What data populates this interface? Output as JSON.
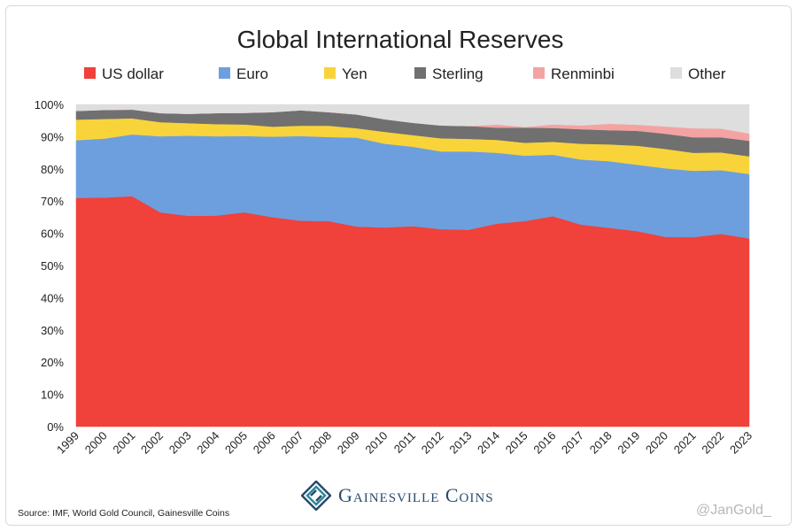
{
  "chart_data": {
    "type": "area",
    "stacked": true,
    "title": "Global International Reserves",
    "xlabel": "",
    "ylabel": "",
    "ylim": [
      0,
      100
    ],
    "yticks": [
      "0%",
      "10%",
      "20%",
      "30%",
      "40%",
      "50%",
      "60%",
      "70%",
      "80%",
      "90%",
      "100%"
    ],
    "categories": [
      "1999",
      "2000",
      "2001",
      "2002",
      "2003",
      "2004",
      "2005",
      "2006",
      "2007",
      "2008",
      "2009",
      "2010",
      "2011",
      "2012",
      "2013",
      "2014",
      "2015",
      "2016",
      "2017",
      "2018",
      "2019",
      "2020",
      "2021",
      "2022",
      "2023"
    ],
    "legend_position": "top",
    "series": [
      {
        "name": "US dollar",
        "color": "#f0413a",
        "values": [
          71.0,
          71.1,
          71.5,
          66.5,
          65.4,
          65.5,
          66.5,
          65.0,
          63.9,
          63.8,
          62.1,
          61.8,
          62.2,
          61.3,
          61.1,
          63.0,
          63.8,
          65.3,
          62.7,
          61.7,
          60.7,
          58.9,
          58.8,
          59.8,
          58.4
        ]
      },
      {
        "name": "Euro",
        "color": "#6d9fde",
        "values": [
          17.9,
          18.3,
          19.2,
          23.6,
          24.9,
          24.6,
          23.7,
          25.0,
          26.3,
          26.1,
          27.6,
          26.0,
          24.7,
          24.1,
          24.3,
          22.0,
          20.3,
          19.1,
          20.2,
          20.7,
          20.6,
          21.3,
          20.6,
          19.8,
          20.0
        ]
      },
      {
        "name": "Yen",
        "color": "#f8d43a",
        "values": [
          6.4,
          6.1,
          5.0,
          4.4,
          3.9,
          3.8,
          3.6,
          3.1,
          3.2,
          3.5,
          2.9,
          3.7,
          3.6,
          4.1,
          3.9,
          4.0,
          4.0,
          4.0,
          4.9,
          5.2,
          5.9,
          6.0,
          5.6,
          5.5,
          5.5
        ]
      },
      {
        "name": "Sterling",
        "color": "#707070",
        "values": [
          2.7,
          2.8,
          2.7,
          2.8,
          2.9,
          3.4,
          3.6,
          4.5,
          4.8,
          4.2,
          4.3,
          3.9,
          3.8,
          4.0,
          4.0,
          3.8,
          4.7,
          4.3,
          4.5,
          4.4,
          4.6,
          4.7,
          4.8,
          4.7,
          4.8
        ]
      },
      {
        "name": "Renminbi",
        "color": "#f4a3a3",
        "values": [
          0,
          0,
          0,
          0,
          0,
          0,
          0,
          0,
          0,
          0,
          0,
          0,
          0,
          0,
          0,
          1.0,
          0.2,
          1.1,
          1.2,
          2.0,
          1.9,
          2.3,
          2.8,
          2.7,
          2.3
        ]
      },
      {
        "name": "Other",
        "color": "#dedede",
        "values": [
          2.0,
          1.7,
          1.6,
          2.7,
          2.9,
          2.7,
          2.6,
          2.4,
          1.8,
          2.4,
          3.1,
          4.6,
          5.7,
          6.5,
          6.7,
          6.2,
          7.0,
          6.2,
          6.5,
          6.0,
          6.3,
          6.8,
          7.4,
          7.5,
          9.0
        ]
      }
    ]
  },
  "footer": {
    "source": "Source: IMF, World Gold Council, Gainesville Coins",
    "watermark": "@JanGold_"
  },
  "logo": {
    "text": "Gainesville Coins",
    "color_dark": "#2a4a6b",
    "color_accent": "#2b8aa0"
  }
}
